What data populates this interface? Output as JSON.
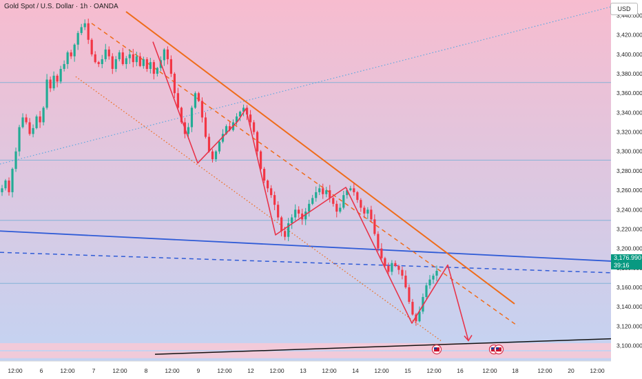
{
  "header": {
    "title": "Gold Spot / U.S. Dollar · 1h · OANDA",
    "currency": "USD"
  },
  "price_tag": {
    "price": "3,176.990",
    "countdown": "39:16"
  },
  "colors": {
    "bg_top": "#f7bccf",
    "bg_bottom": "#c3d3f2",
    "up": "#22ab94",
    "down": "#f23645",
    "orange": "#ef6c1a",
    "blue": "#2f5bd6",
    "dotted_blue": "#5aa8e0",
    "red_path": "#e8334a",
    "support": "#111111",
    "hline": "#7bb0d6",
    "price_tag": "#089981",
    "pink_band": "#f6c9d6"
  },
  "event_icons": [
    "us-flag-icon",
    "us-flag-icon",
    "us-flag-icon"
  ],
  "chart_data": {
    "type": "candlestick",
    "title": "Gold Spot / U.S. Dollar · 1h · OANDA",
    "ylabel": "USD",
    "ylim": [
      3084,
      3456
    ],
    "y_ticks": [
      "3,440.000",
      "3,420.000",
      "3,400.000",
      "3,380.000",
      "3,360.000",
      "3,340.000",
      "3,320.000",
      "3,300.000",
      "3,280.000",
      "3,260.000",
      "3,240.000",
      "3,220.000",
      "3,200.000",
      "3,180.000",
      "3,160.000",
      "3,140.000",
      "3,120.000",
      "3,100.000"
    ],
    "x_ticks": [
      "12:00",
      "6",
      "12:00",
      "7",
      "12:00",
      "8",
      "12:00",
      "9",
      "12:00",
      "12",
      "12:00",
      "13",
      "12:00",
      "14",
      "12:00",
      "15",
      "12:00",
      "16",
      "12:00",
      "18",
      "12:00",
      "20",
      "12:00"
    ],
    "last_price": 3176.99,
    "horizontal_levels": [
      3371,
      3291,
      3229,
      3164
    ],
    "candles_close": [
      3262,
      3270,
      3258,
      3282,
      3300,
      3325,
      3335,
      3330,
      3318,
      3324,
      3336,
      3330,
      3345,
      3374,
      3365,
      3378,
      3372,
      3385,
      3390,
      3402,
      3398,
      3410,
      3422,
      3428,
      3432,
      3415,
      3400,
      3392,
      3390,
      3395,
      3405,
      3398,
      3385,
      3395,
      3402,
      3390,
      3396,
      3400,
      3392,
      3398,
      3388,
      3395,
      3385,
      3392,
      3380,
      3386,
      3394,
      3405,
      3395,
      3380,
      3360,
      3345,
      3330,
      3318,
      3325,
      3345,
      3360,
      3352,
      3335,
      3315,
      3300,
      3292,
      3300,
      3310,
      3318,
      3326,
      3322,
      3330,
      3336,
      3341,
      3345,
      3338,
      3330,
      3320,
      3300,
      3282,
      3270,
      3262,
      3255,
      3245,
      3232,
      3218,
      3212,
      3226,
      3232,
      3240,
      3236,
      3230,
      3238,
      3246,
      3252,
      3258,
      3262,
      3256,
      3260,
      3252,
      3246,
      3238,
      3242,
      3255,
      3260,
      3262,
      3258,
      3250,
      3242,
      3236,
      3240,
      3230,
      3215,
      3200,
      3190,
      3182,
      3176,
      3185,
      3182,
      3178,
      3172,
      3160,
      3145,
      3132,
      3125,
      3135,
      3150,
      3162,
      3168,
      3172,
      3176.99
    ],
    "channel_upper": {
      "from": [
        3444,
        3432
      ],
      "to": [
        3143,
        3143
      ]
    },
    "channel_mid": {
      "from": [
        3432,
        3420
      ],
      "to": [
        3120,
        3120
      ]
    },
    "channel_lower": {
      "from": [
        3377,
        3377
      ],
      "to": [
        3105,
        3105
      ]
    },
    "trend_lines": [
      {
        "name": "rising-dotted",
        "from": 3287,
        "to": 3449
      },
      {
        "name": "blue-solid",
        "from": 3218,
        "to": 3187
      },
      {
        "name": "blue-dashed",
        "from": 3196,
        "to": 3175
      },
      {
        "name": "support",
        "from": 3091,
        "to": 3107
      }
    ],
    "projection_path": [
      3413,
      3288,
      3331,
      3344,
      3214,
      3263,
      3123,
      3183,
      3105
    ],
    "series": [
      {
        "name": "Gold Spot / U.S. Dollar",
        "values": []
      }
    ]
  }
}
